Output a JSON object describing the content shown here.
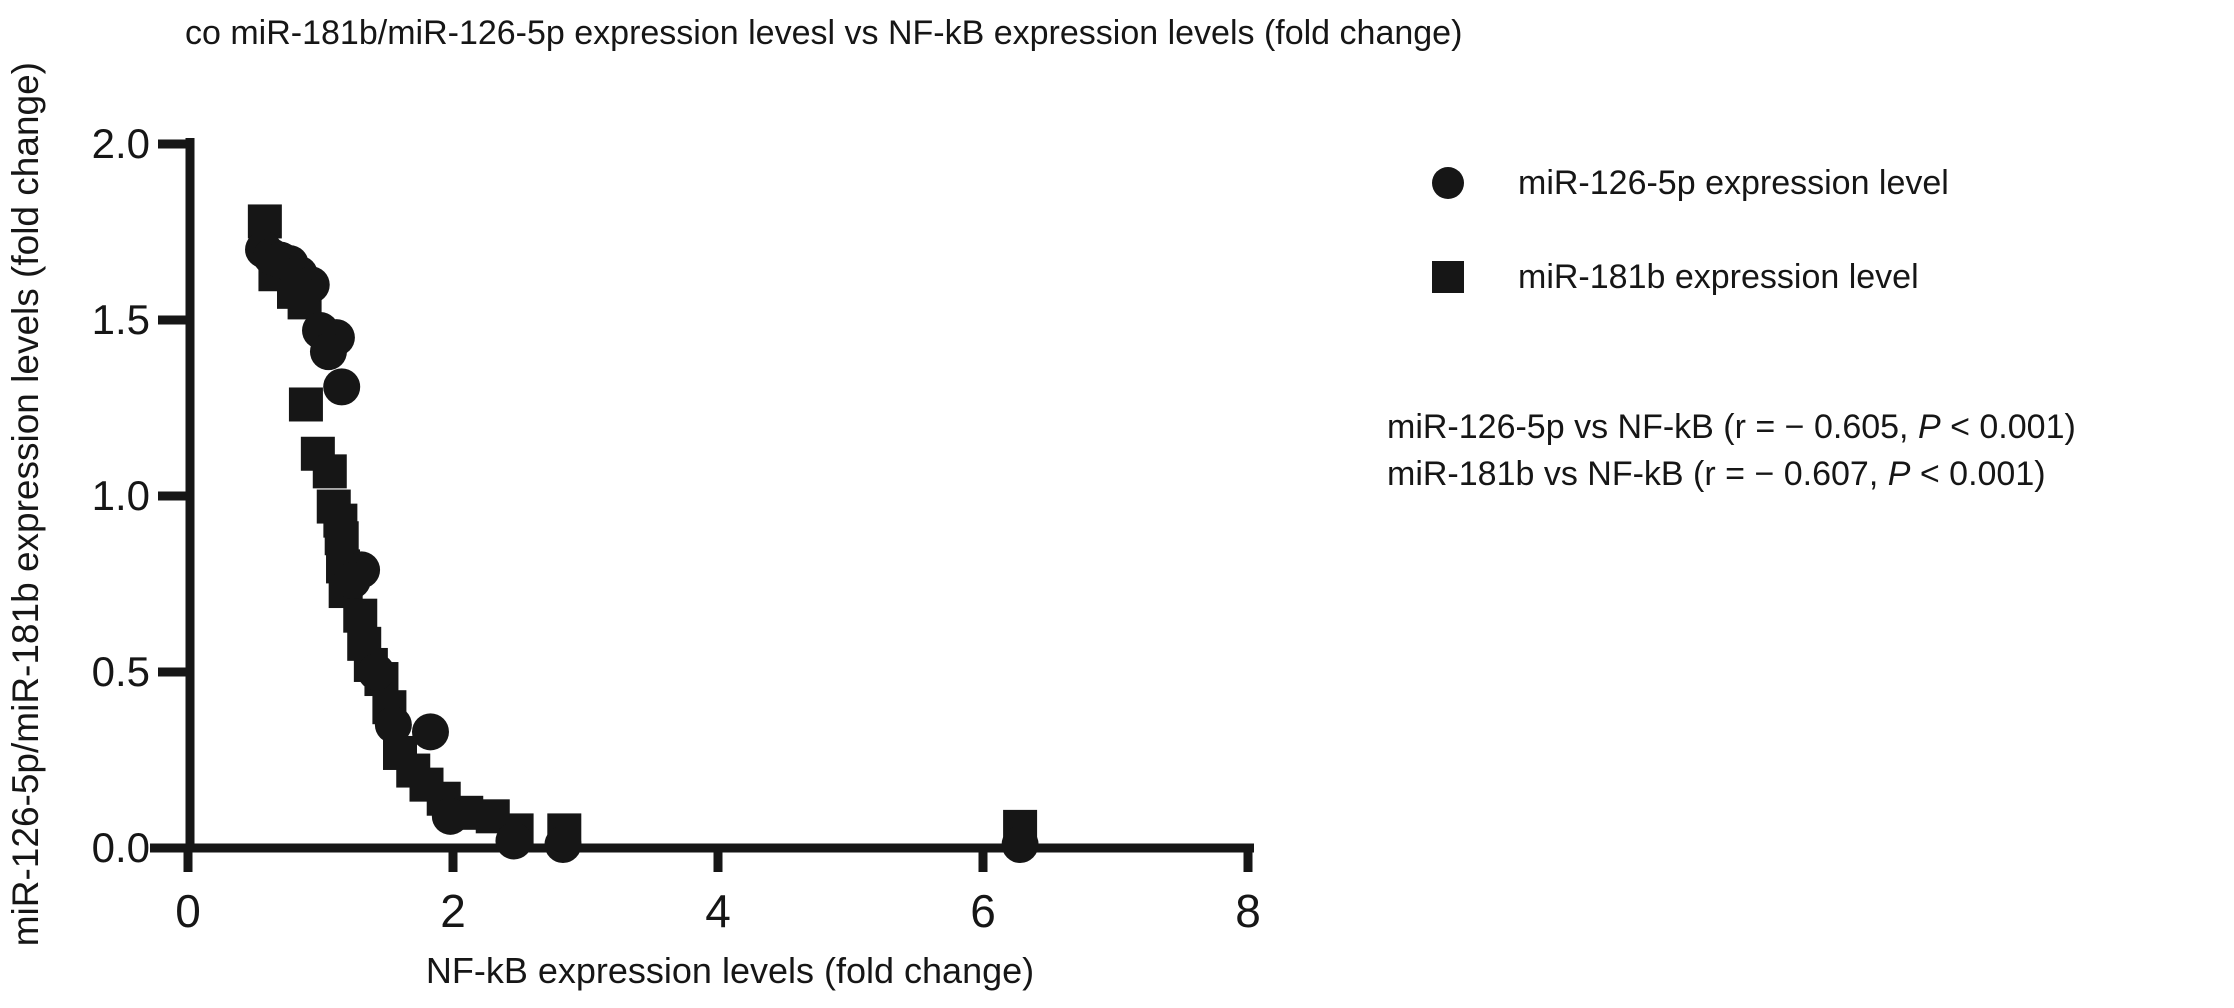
{
  "figure": {
    "title": "co miR-181b/miR-126-5p expression levesl vs NF-kB expression levels (fold change)",
    "x_axis_label": "NF-kB expression levels (fold change)",
    "y_axis_label": "miR-126-5p/miR-181b expression levels (fold change)",
    "legend": [
      {
        "marker": "circle-marker-icon",
        "label": "miR-126-5p expression level"
      },
      {
        "marker": "square-marker-icon",
        "label": "miR-181b expression level"
      }
    ],
    "stats": [
      {
        "prefix": "miR-126-5p vs NF-kB (r = − 0.605, ",
        "italic": "P",
        "suffix": " < 0.001)"
      },
      {
        "prefix": "miR-181b vs NF-kB (r = − 0.607, ",
        "italic": "P",
        "suffix": " < 0.001)"
      }
    ],
    "colors": {
      "marker": "#161616",
      "axis": "#161616",
      "text": "#161616"
    }
  },
  "chart_data": {
    "type": "scatter",
    "title": "co miR-181b/miR-126-5p expression levesl vs NF-kB expression levels (fold change)",
    "xlabel": "NF-kB expression levels (fold change)",
    "ylabel": "miR-126-5p/miR-181b expression levels (fold change)",
    "xlim": [
      0,
      8
    ],
    "ylim": [
      0,
      2
    ],
    "xticks": [
      "0",
      "2",
      "4",
      "6",
      "8"
    ],
    "yticks": [
      "0.0",
      "0.5",
      "1.0",
      "1.5",
      "2.0"
    ],
    "grid": false,
    "legend_position": "right",
    "series": [
      {
        "name": "miR-181b expression level",
        "marker": "square",
        "points": [
          [
            0.58,
            1.78
          ],
          [
            0.66,
            1.63
          ],
          [
            0.8,
            1.58
          ],
          [
            0.88,
            1.55
          ],
          [
            0.89,
            1.26
          ],
          [
            0.98,
            1.12
          ],
          [
            1.07,
            1.07
          ],
          [
            1.1,
            0.97
          ],
          [
            1.15,
            0.93
          ],
          [
            1.16,
            0.88
          ],
          [
            1.17,
            0.8
          ],
          [
            1.19,
            0.73
          ],
          [
            1.3,
            0.66
          ],
          [
            1.33,
            0.58
          ],
          [
            1.38,
            0.52
          ],
          [
            1.46,
            0.48
          ],
          [
            1.52,
            0.4
          ],
          [
            1.6,
            0.27
          ],
          [
            1.7,
            0.22
          ],
          [
            1.8,
            0.18
          ],
          [
            1.93,
            0.14
          ],
          [
            2.1,
            0.1
          ],
          [
            2.3,
            0.09
          ],
          [
            2.48,
            0.05
          ],
          [
            2.84,
            0.05
          ],
          [
            6.28,
            0.06
          ]
        ]
      },
      {
        "name": "miR-126-5p expression level",
        "marker": "circle",
        "points": [
          [
            0.57,
            1.7
          ],
          [
            0.63,
            1.68
          ],
          [
            0.7,
            1.67
          ],
          [
            0.77,
            1.66
          ],
          [
            0.84,
            1.63
          ],
          [
            0.93,
            1.6
          ],
          [
            0.86,
            1.57
          ],
          [
            1.0,
            1.47
          ],
          [
            1.12,
            1.45
          ],
          [
            1.06,
            1.41
          ],
          [
            1.16,
            1.31
          ],
          [
            1.31,
            0.79
          ],
          [
            1.24,
            0.76
          ],
          [
            1.42,
            0.5
          ],
          [
            1.55,
            0.35
          ],
          [
            1.83,
            0.33
          ],
          [
            1.98,
            0.09
          ],
          [
            2.46,
            0.02
          ],
          [
            2.83,
            0.01
          ],
          [
            6.28,
            0.01
          ]
        ]
      }
    ],
    "annotations": [
      "miR-126-5p vs NF-kB (r = − 0.605, P < 0.001)",
      "miR-181b vs NF-kB (r = − 0.607, P < 0.001)"
    ]
  }
}
